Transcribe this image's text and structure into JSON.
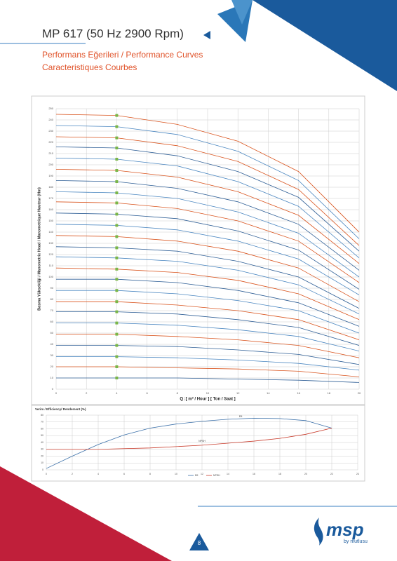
{
  "header": {
    "title": "MP 617 (50 Hz 2900 Rpm)",
    "subtitle_lines": [
      "Performans Eğerileri / Performance Curves",
      "Caracteristiques Courbes"
    ]
  },
  "footer": {
    "page_number": "8",
    "logo": "msp",
    "logo_tagline": "by mutlusu"
  },
  "chart_data": [
    {
      "type": "line",
      "xlabel": "Q :[ m³ / Hour ] [ Ton / Saat ]",
      "ylabel": "Basma Yüksekliği / Manometric Head / Manometrique Hauteur (Hm)",
      "x": [
        0,
        4,
        8,
        12,
        16,
        20
      ],
      "xlim": [
        0,
        20
      ],
      "xticks": [
        0,
        2,
        4,
        6,
        8,
        10,
        12,
        14,
        16,
        18,
        20
      ],
      "ylim": [
        0,
        250
      ],
      "yticks": [
        0,
        10,
        20,
        30,
        40,
        50,
        60,
        70,
        80,
        90,
        100,
        110,
        120,
        130,
        140,
        150,
        160,
        170,
        180,
        190,
        200,
        210,
        220,
        230,
        240,
        250
      ],
      "grid": true,
      "markers": {
        "x": 4,
        "color": "#7ab648"
      },
      "series": [
        {
          "color": "#2f5f96",
          "values": [
            10,
            10,
            10,
            9,
            8,
            6
          ]
        },
        {
          "color": "#d9541e",
          "values": [
            20,
            20,
            19,
            18,
            16,
            11
          ]
        },
        {
          "color": "#4a86c0",
          "values": [
            29,
            29,
            28,
            26,
            23,
            17
          ]
        },
        {
          "color": "#2f5f96",
          "values": [
            39,
            39,
            38,
            35,
            31,
            22
          ]
        },
        {
          "color": "#d9541e",
          "values": [
            49,
            49,
            47,
            44,
            39,
            28
          ]
        },
        {
          "color": "#4a86c0",
          "values": [
            59,
            59,
            57,
            53,
            47,
            34
          ]
        },
        {
          "color": "#2f5f96",
          "values": [
            69,
            69,
            67,
            62,
            55,
            39
          ]
        },
        {
          "color": "#d9541e",
          "values": [
            78,
            78,
            75,
            70,
            62,
            44
          ]
        },
        {
          "color": "#4a86c0",
          "values": [
            88,
            88,
            85,
            79,
            70,
            50
          ]
        },
        {
          "color": "#2f5f96",
          "values": [
            98,
            98,
            95,
            88,
            77,
            56
          ]
        },
        {
          "color": "#d9541e",
          "values": [
            108,
            107,
            104,
            97,
            85,
            62
          ]
        },
        {
          "color": "#4a86c0",
          "values": [
            118,
            117,
            114,
            106,
            93,
            67
          ]
        },
        {
          "color": "#2f5f96",
          "values": [
            127,
            126,
            123,
            114,
            100,
            72
          ]
        },
        {
          "color": "#d9541e",
          "values": [
            137,
            136,
            132,
            123,
            108,
            78
          ]
        },
        {
          "color": "#4a86c0",
          "values": [
            147,
            146,
            142,
            132,
            116,
            84
          ]
        },
        {
          "color": "#2f5f96",
          "values": [
            157,
            156,
            152,
            141,
            124,
            89
          ]
        },
        {
          "color": "#d9541e",
          "values": [
            167,
            166,
            161,
            150,
            132,
            95
          ]
        },
        {
          "color": "#4a86c0",
          "values": [
            176,
            175,
            170,
            158,
            139,
            100
          ]
        },
        {
          "color": "#2f5f96",
          "values": [
            186,
            185,
            179,
            167,
            147,
            106
          ]
        },
        {
          "color": "#d9541e",
          "values": [
            196,
            195,
            189,
            176,
            155,
            112
          ]
        },
        {
          "color": "#4a86c0",
          "values": [
            206,
            205,
            199,
            185,
            163,
            117
          ]
        },
        {
          "color": "#2f5f96",
          "values": [
            216,
            215,
            208,
            194,
            171,
            123
          ]
        },
        {
          "color": "#d9541e",
          "values": [
            225,
            224,
            217,
            203,
            178,
            128
          ]
        },
        {
          "color": "#4a86c0",
          "values": [
            235,
            234,
            227,
            212,
            186,
            134
          ]
        },
        {
          "color": "#d9541e",
          "values": [
            245,
            244,
            236,
            221,
            194,
            140
          ]
        }
      ]
    },
    {
      "type": "line",
      "title": "Verim / Efficiency/ Rendement (%)",
      "x": [
        0,
        2,
        4,
        6,
        8,
        10,
        12,
        14,
        16,
        18,
        20,
        22
      ],
      "xlim": [
        0,
        24
      ],
      "xticks": [
        0,
        2,
        4,
        6,
        8,
        10,
        12,
        14,
        16,
        18,
        20,
        22,
        24
      ],
      "ylim": [
        0,
        80
      ],
      "yticks": [
        0,
        10,
        20,
        30,
        40,
        50,
        60,
        70,
        80
      ],
      "grid": true,
      "series": [
        {
          "name": "Eff.",
          "color": "#3a6fa8",
          "values": [
            2,
            20,
            37,
            51,
            61,
            67,
            71,
            74,
            75.5,
            75,
            72,
            61
          ]
        },
        {
          "name": "NPSH",
          "color": "#c83a2a",
          "values": [
            30,
            30,
            30,
            31,
            32,
            34,
            36,
            39,
            42,
            46,
            52,
            61
          ]
        }
      ],
      "annotations": [
        {
          "text": "Eff.",
          "x": 15,
          "y": 78
        },
        {
          "text": "NPSH",
          "x": 12,
          "y": 42
        }
      ]
    }
  ]
}
